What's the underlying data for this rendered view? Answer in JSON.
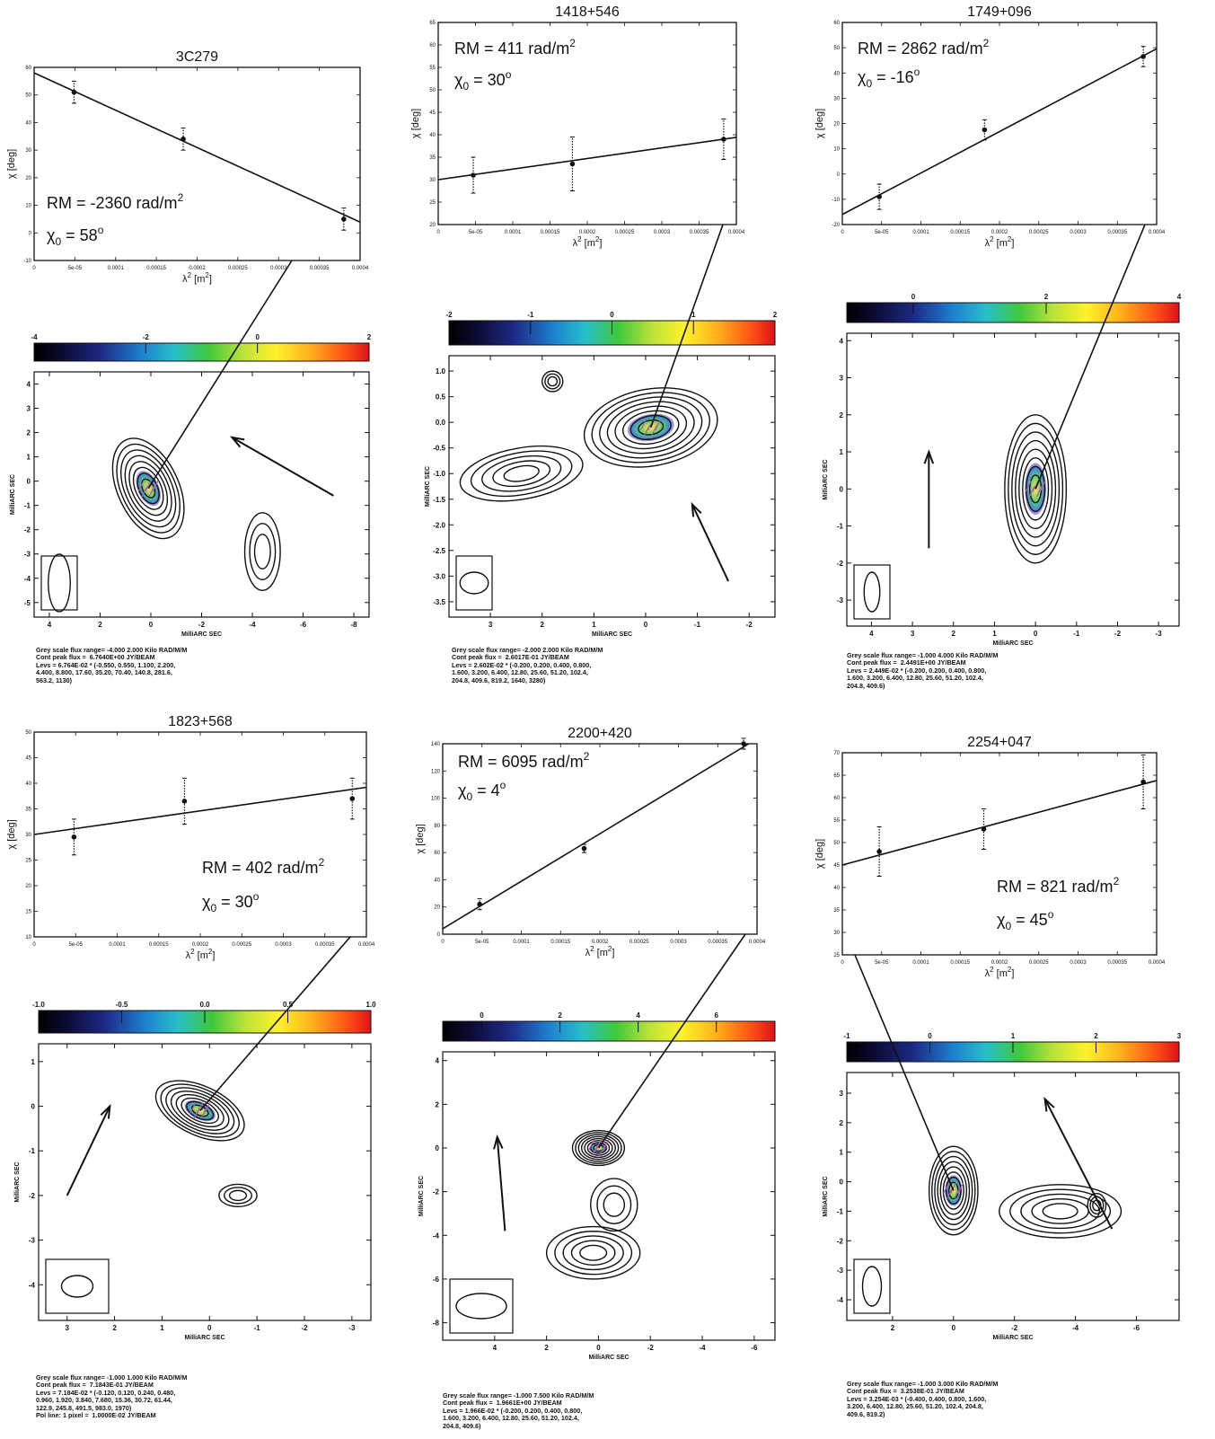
{
  "figure": {
    "panels": [
      {
        "source": "3C279",
        "fit": {
          "rm_text": "RM = -2360 rad/m",
          "rm_sup": "2",
          "chi_text": "χ",
          "chi_sub": "0",
          "chi_value": " = 58",
          "deg_sup": "o"
        },
        "rm_map": {
          "colorbar_ticks": [
            "-4",
            "-2",
            "0",
            "2"
          ],
          "y_ticks": [
            "4",
            "3",
            "2",
            "1",
            "0",
            "-1",
            "-2",
            "-3",
            "-4",
            "-5"
          ],
          "x_ticks": [
            "4",
            "2",
            "0",
            "-2",
            "-4",
            "-6",
            "-8"
          ],
          "xlabel": "MilliARC SEC",
          "ylabel": "MilliARC SEC"
        },
        "caption": [
          "Grey scale flux range= -4.000 2.000 Kilo RAD/M/M",
          "Cont peak flux =  6.7640E+00 JY/BEAM",
          "Levs = 6.764E-02 * (-0.550, 0.550, 1.100, 2.200,",
          "4.400, 8.800, 17.60, 35.20, 70.40, 140.8, 281.6,",
          "563.2, 1130)"
        ]
      },
      {
        "source": "1418+546",
        "fit": {
          "rm_text": "RM = 411 rad/m",
          "rm_sup": "2",
          "chi_text": "χ",
          "chi_sub": "0",
          "chi_value": " = 30",
          "deg_sup": "o"
        },
        "rm_map": {
          "colorbar_ticks": [
            "-2",
            "-1",
            "0",
            "1",
            "2"
          ],
          "y_ticks": [
            "1.0",
            "0.5",
            "0.0",
            "-0.5",
            "-1.0",
            "-1.5",
            "-2.0",
            "-2.5",
            "-3.0",
            "-3.5"
          ],
          "x_ticks": [
            "3",
            "2",
            "1",
            "0",
            "-1",
            "-2"
          ],
          "xlabel": "MilliARC SEC",
          "ylabel": "MilliARC SEC"
        },
        "caption": [
          "Grey scale flux range= -2.000 2.000 Kilo RAD/M/M",
          "Cont peak flux =  2.6017E-01 JY/BEAM",
          "Levs = 2.602E-02 * (-0.200, 0.200, 0.400, 0.800,",
          "1.600, 3.200, 6.400, 12.80, 25.60, 51.20, 102.4,",
          "204.8, 409.6, 819.2, 1640, 3280)"
        ]
      },
      {
        "source": "1749+096",
        "fit": {
          "rm_text": "RM = 2862 rad/m",
          "rm_sup": "2",
          "chi_text": "χ",
          "chi_sub": "0",
          "chi_value": " = -16",
          "deg_sup": "o"
        },
        "rm_map": {
          "colorbar_ticks": [
            "0",
            "2",
            "4"
          ],
          "y_ticks": [
            "4",
            "3",
            "2",
            "1",
            "0",
            "-1",
            "-2",
            "-3"
          ],
          "x_ticks": [
            "4",
            "3",
            "2",
            "1",
            "0",
            "-1",
            "-2",
            "-3"
          ],
          "xlabel": "MilliARC SEC",
          "ylabel": "MilliARC SEC"
        },
        "caption": [
          "Grey scale flux range= -1.000 4.000 Kilo RAD/M/M",
          "Cont peak flux =  2.4491E+00 JY/BEAM",
          "Levs = 2.449E-02 * (-0.200, 0.200, 0.400, 0.800,",
          "1.600, 3.200, 6.400, 12.80, 25.60, 51.20, 102.4,",
          "204.8, 409.6)"
        ]
      },
      {
        "source": "1823+568",
        "fit": {
          "rm_text": "RM = 402 rad/m",
          "rm_sup": "2",
          "chi_text": "χ",
          "chi_sub": "0",
          "chi_value": " = 30",
          "deg_sup": "o"
        },
        "rm_map": {
          "colorbar_ticks": [
            "-1.0",
            "-0.5",
            "0.0",
            "0.5",
            "1.0"
          ],
          "y_ticks": [
            "1",
            "0",
            "-1",
            "-2",
            "-3",
            "-4"
          ],
          "x_ticks": [
            "3",
            "2",
            "1",
            "0",
            "-1",
            "-2",
            "-3"
          ],
          "xlabel": "MilliARC SEC",
          "ylabel": "MilliARC SEC"
        },
        "caption": [
          "Grey scale flux range= -1.000 1.000 Kilo RAD/M/M",
          "Cont peak flux =  7.1843E-01 JY/BEAM",
          "Levs = 7.184E-02 * (-0.120, 0.120, 0.240, 0.480,",
          "0.960, 1.920, 3.840, 7.680, 15.36, 30.72, 61.44,",
          "122.9, 245.8, 491.5, 983.0, 1970)",
          "Pol line: 1 pixel =  1.0000E-02 JY/BEAM"
        ]
      },
      {
        "source": "2200+420",
        "fit": {
          "rm_text": "RM = 6095 rad/m",
          "rm_sup": "2",
          "chi_text": "χ",
          "chi_sub": "0",
          "chi_value": " = 4",
          "deg_sup": "o"
        },
        "rm_map": {
          "colorbar_ticks": [
            "0",
            "2",
            "4",
            "6"
          ],
          "y_ticks": [
            "4",
            "2",
            "0",
            "-2",
            "-4",
            "-6",
            "-8"
          ],
          "x_ticks": [
            "4",
            "2",
            "0",
            "-2",
            "-4",
            "-6"
          ],
          "xlabel": "MilliARC SEC",
          "ylabel": "MilliARC SEC"
        },
        "caption": [
          "Grey scale flux range= -1.000 7.500 Kilo RAD/M/M",
          "Cont peak flux =  1.9661E+00 JY/BEAM",
          "Levs = 1.966E-02 * (-0.200, 0.200, 0.400, 0.800,",
          "1.600, 3.200, 6.400, 12.80, 25.60, 51.20, 102.4,",
          "204.8, 409.6)"
        ]
      },
      {
        "source": "2254+047",
        "fit": {
          "rm_text": "RM = 821 rad/m",
          "rm_sup": "2",
          "chi_text": "χ",
          "chi_sub": "0",
          "chi_value": " = 45",
          "deg_sup": "o"
        },
        "rm_map": {
          "colorbar_ticks": [
            "-1",
            "0",
            "1",
            "2",
            "3"
          ],
          "y_ticks": [
            "3",
            "2",
            "1",
            "0",
            "-1",
            "-2",
            "-3",
            "-4"
          ],
          "x_ticks": [
            "2",
            "0",
            "-2",
            "-4",
            "-6"
          ],
          "xlabel": "MilliARC SEC",
          "ylabel": "MilliARC SEC"
        },
        "caption": [
          "Grey scale flux range= -1.000 3.000 Kilo RAD/M/M",
          "Cont peak flux =  3.2538E-01 JY/BEAM",
          "Levs = 3.254E-03 * (-0.400, 0.400, 0.800, 1.600,",
          "3.200, 6.400, 12.80, 25.60, 51.20, 102.4, 204.8,",
          "409.6, 819.2)"
        ]
      }
    ]
  },
  "chart_data": [
    {
      "type": "scatter",
      "title": "3C279",
      "xlabel": "λ² [m²]",
      "ylabel": "χ [deg]",
      "xlim": [
        0,
        0.0004
      ],
      "ylim": [
        -10,
        60
      ],
      "x_ticks": [
        "0",
        "5e-05",
        "0.0001",
        "0.00015",
        "0.0002",
        "0.00025",
        "0.0003",
        "0.00035",
        "0.0004"
      ],
      "y_ticks": [
        "-10",
        "0",
        "10",
        "20",
        "30",
        "40",
        "50",
        "60"
      ],
      "points": [
        {
          "x": 4.9e-05,
          "y": 51,
          "err": 4
        },
        {
          "x": 0.000183,
          "y": 34,
          "err": 4
        },
        {
          "x": 0.00038,
          "y": 5,
          "err": 4
        }
      ],
      "fit_line": {
        "slope_rad_per_m2": -2360,
        "intercept_deg": 58
      }
    },
    {
      "type": "scatter",
      "title": "1418+546",
      "xlabel": "λ² [m²]",
      "ylabel": "χ [deg]",
      "xlim": [
        0,
        0.0004
      ],
      "ylim": [
        20,
        65
      ],
      "x_ticks": [
        "0",
        "5e-05",
        "0.0001",
        "0.00015",
        "0.0002",
        "0.00025",
        "0.0003",
        "0.00035",
        "0.0004"
      ],
      "y_ticks": [
        "20",
        "25",
        "30",
        "35",
        "40",
        "45",
        "50",
        "55",
        "60",
        "65"
      ],
      "points": [
        {
          "x": 4.7e-05,
          "y": 31,
          "err": 4
        },
        {
          "x": 0.00018,
          "y": 33.5,
          "err": 6
        },
        {
          "x": 0.000383,
          "y": 39,
          "err": 4.5
        }
      ],
      "fit_line": {
        "slope_rad_per_m2": 411,
        "intercept_deg": 30
      }
    },
    {
      "type": "scatter",
      "title": "1749+096",
      "xlabel": "λ² [m²]",
      "ylabel": "χ [deg]",
      "xlim": [
        0,
        0.0004
      ],
      "ylim": [
        -20,
        60
      ],
      "x_ticks": [
        "0",
        "5e-05",
        "0.0001",
        "0.00015",
        "0.0002",
        "0.00025",
        "0.0003",
        "0.00035",
        "0.0004"
      ],
      "y_ticks": [
        "-20",
        "-10",
        "0",
        "10",
        "20",
        "30",
        "40",
        "50",
        "60"
      ],
      "points": [
        {
          "x": 4.7e-05,
          "y": -9,
          "err": 5
        },
        {
          "x": 0.000181,
          "y": 17.5,
          "err": 4
        },
        {
          "x": 0.000383,
          "y": 46.5,
          "err": 4
        }
      ],
      "fit_line": {
        "slope_rad_per_m2": 2862,
        "intercept_deg": -16
      }
    },
    {
      "type": "scatter",
      "title": "1823+568",
      "xlabel": "λ² [m²]",
      "ylabel": "χ [deg]",
      "xlim": [
        0,
        0.0004
      ],
      "ylim": [
        10,
        50
      ],
      "x_ticks": [
        "0",
        "5e-05",
        "0.0001",
        "0.00015",
        "0.0002",
        "0.00025",
        "0.0003",
        "0.00035",
        "0.0004"
      ],
      "y_ticks": [
        "10",
        "15",
        "20",
        "25",
        "30",
        "35",
        "40",
        "45",
        "50"
      ],
      "points": [
        {
          "x": 4.8e-05,
          "y": 29.5,
          "err": 3.5
        },
        {
          "x": 0.000181,
          "y": 36.5,
          "err": 4.5
        },
        {
          "x": 0.000383,
          "y": 37,
          "err": 4
        }
      ],
      "fit_line": {
        "slope_rad_per_m2": 402,
        "intercept_deg": 30
      }
    },
    {
      "type": "scatter",
      "title": "2200+420",
      "xlabel": "λ² [m²]",
      "ylabel": "χ [deg]",
      "xlim": [
        0,
        0.0004
      ],
      "ylim": [
        0,
        140
      ],
      "x_ticks": [
        "0",
        "5e-05",
        "0.0001",
        "0.00015",
        "0.0002",
        "0.00025",
        "0.0003",
        "0.00035",
        "0.0004"
      ],
      "y_ticks": [
        "0",
        "20",
        "40",
        "60",
        "80",
        "100",
        "120",
        "140"
      ],
      "points": [
        {
          "x": 4.7e-05,
          "y": 22,
          "err": 4
        },
        {
          "x": 0.00018,
          "y": 63,
          "err": 3
        },
        {
          "x": 0.000383,
          "y": 140,
          "err": 4
        }
      ],
      "fit_line": {
        "slope_rad_per_m2": 6095,
        "intercept_deg": 4
      }
    },
    {
      "type": "scatter",
      "title": "2254+047",
      "xlabel": "λ² [m²]",
      "ylabel": "χ [deg]",
      "xlim": [
        0,
        0.0004
      ],
      "ylim": [
        25,
        70
      ],
      "x_ticks": [
        "0",
        "5e-05",
        "0.0001",
        "0.00015",
        "0.0002",
        "0.00025",
        "0.0003",
        "0.00035",
        "0.0004"
      ],
      "y_ticks": [
        "25",
        "30",
        "35",
        "40",
        "45",
        "50",
        "55",
        "60",
        "65",
        "70"
      ],
      "points": [
        {
          "x": 4.7e-05,
          "y": 48,
          "err": 5.5
        },
        {
          "x": 0.00018,
          "y": 53,
          "err": 4.5
        },
        {
          "x": 0.000383,
          "y": 63.5,
          "err": 6
        }
      ],
      "fit_line": {
        "slope_rad_per_m2": 821,
        "intercept_deg": 45
      }
    }
  ]
}
